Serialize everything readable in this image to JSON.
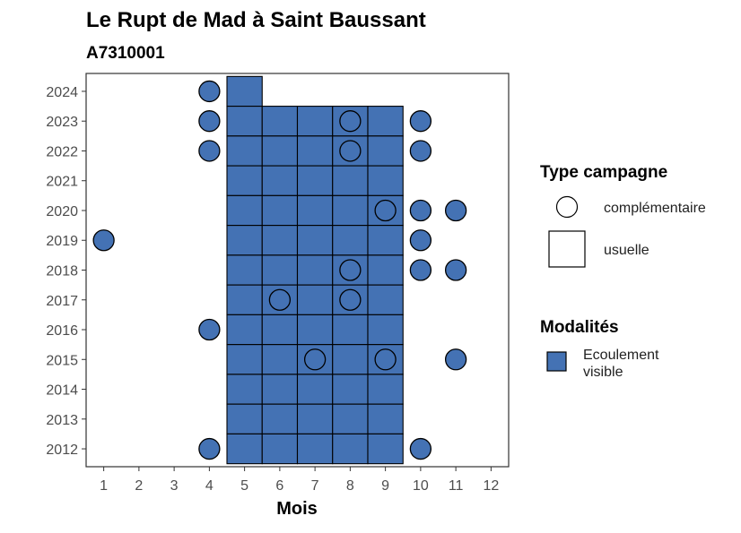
{
  "chart_data": {
    "type": "tile",
    "title": "Le Rupt de Mad à Saint Baussant",
    "subtitle": "A7310001",
    "xlabel": "Mois",
    "ylabel": "",
    "x_ticks": [
      1,
      2,
      3,
      4,
      5,
      6,
      7,
      8,
      9,
      10,
      11,
      12
    ],
    "y_ticks": [
      2012,
      2013,
      2014,
      2015,
      2016,
      2017,
      2018,
      2019,
      2020,
      2021,
      2022,
      2023,
      2024
    ],
    "xlim": [
      0.5,
      12.5
    ],
    "ylim": [
      2011.4,
      2024.6
    ],
    "grid": false,
    "legend_position": "right",
    "colors": {
      "ecoulement_visible": "#4472b4",
      "outline": "#000000",
      "panel_border": "#333333"
    },
    "legend": {
      "type_title": "Type campagne",
      "type_items": [
        {
          "shape": "circle",
          "label": "complémentaire"
        },
        {
          "shape": "square",
          "label": "usuelle"
        }
      ],
      "modalites_title": "Modalités",
      "modalites_items": [
        {
          "line1": "Ecoulement",
          "line2": "visible",
          "color": "#4472b4"
        }
      ]
    },
    "usuelle_points": [
      {
        "year": 2024,
        "months": [
          5
        ]
      },
      {
        "year": 2023,
        "months": [
          5,
          6,
          7,
          8,
          9
        ]
      },
      {
        "year": 2022,
        "months": [
          5,
          6,
          7,
          8,
          9
        ]
      },
      {
        "year": 2021,
        "months": [
          5,
          6,
          7,
          8,
          9
        ]
      },
      {
        "year": 2020,
        "months": [
          5,
          6,
          7,
          8,
          9
        ]
      },
      {
        "year": 2019,
        "months": [
          5,
          6,
          7,
          8,
          9
        ]
      },
      {
        "year": 2018,
        "months": [
          5,
          6,
          7,
          8,
          9
        ]
      },
      {
        "year": 2017,
        "months": [
          5,
          6,
          7,
          8,
          9
        ]
      },
      {
        "year": 2016,
        "months": [
          5,
          6,
          7,
          8,
          9
        ]
      },
      {
        "year": 2015,
        "months": [
          5,
          6,
          7,
          8,
          9
        ]
      },
      {
        "year": 2014,
        "months": [
          5,
          6,
          7,
          8,
          9
        ]
      },
      {
        "year": 2013,
        "months": [
          5,
          6,
          7,
          8,
          9
        ]
      },
      {
        "year": 2012,
        "months": [
          5,
          6,
          7,
          8,
          9
        ]
      }
    ],
    "complementaire_points": [
      {
        "month": 4,
        "year": 2024,
        "filled": true
      },
      {
        "month": 4,
        "year": 2023,
        "filled": true
      },
      {
        "month": 8,
        "year": 2023,
        "filled": false
      },
      {
        "month": 10,
        "year": 2023,
        "filled": true
      },
      {
        "month": 4,
        "year": 2022,
        "filled": true
      },
      {
        "month": 8,
        "year": 2022,
        "filled": false
      },
      {
        "month": 10,
        "year": 2022,
        "filled": true
      },
      {
        "month": 9,
        "year": 2020,
        "filled": false
      },
      {
        "month": 10,
        "year": 2020,
        "filled": true
      },
      {
        "month": 11,
        "year": 2020,
        "filled": true
      },
      {
        "month": 1,
        "year": 2019,
        "filled": true
      },
      {
        "month": 10,
        "year": 2019,
        "filled": true
      },
      {
        "month": 8,
        "year": 2018,
        "filled": false
      },
      {
        "month": 10,
        "year": 2018,
        "filled": true
      },
      {
        "month": 11,
        "year": 2018,
        "filled": true
      },
      {
        "month": 6,
        "year": 2017,
        "filled": false
      },
      {
        "month": 8,
        "year": 2017,
        "filled": false
      },
      {
        "month": 4,
        "year": 2016,
        "filled": true
      },
      {
        "month": 7,
        "year": 2015,
        "filled": false
      },
      {
        "month": 9,
        "year": 2015,
        "filled": false
      },
      {
        "month": 11,
        "year": 2015,
        "filled": true
      },
      {
        "month": 4,
        "year": 2012,
        "filled": true
      },
      {
        "month": 10,
        "year": 2012,
        "filled": true
      }
    ]
  }
}
